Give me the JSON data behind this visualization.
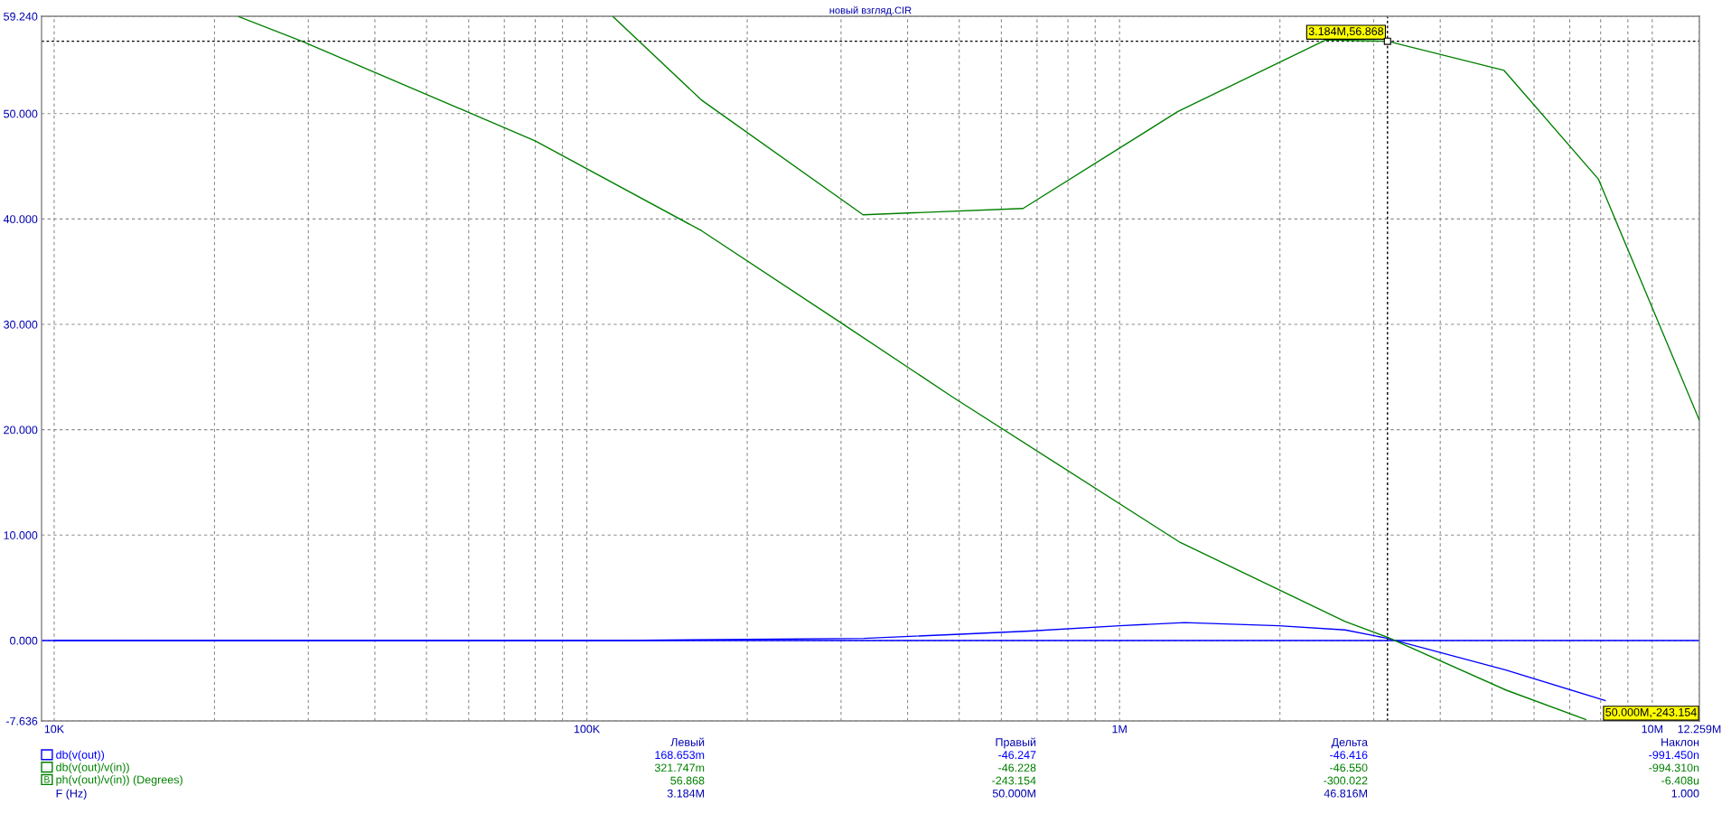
{
  "chart_data": {
    "type": "line",
    "title": "новый взгляд.CIR",
    "log": "x",
    "grid": true,
    "legend": "bottom left",
    "xlim": [
      9470,
      12259000
    ],
    "xticks": [
      {
        "value": 10000,
        "label": "10K"
      },
      {
        "value": 20000,
        "label": null
      },
      {
        "value": 30000,
        "label": null
      },
      {
        "value": 40000,
        "label": null
      },
      {
        "value": 50000,
        "label": null
      },
      {
        "value": 60000,
        "label": null
      },
      {
        "value": 70000,
        "label": null
      },
      {
        "value": 80000,
        "label": null
      },
      {
        "value": 90000,
        "label": null
      },
      {
        "value": 100000,
        "label": "100K"
      },
      {
        "value": 200000,
        "label": null
      },
      {
        "value": 300000,
        "label": null
      },
      {
        "value": 400000,
        "label": null
      },
      {
        "value": 500000,
        "label": null
      },
      {
        "value": 600000,
        "label": null
      },
      {
        "value": 700000,
        "label": null
      },
      {
        "value": 800000,
        "label": null
      },
      {
        "value": 900000,
        "label": null
      },
      {
        "value": 1000000,
        "label": "1M"
      },
      {
        "value": 2000000,
        "label": null
      },
      {
        "value": 3000000,
        "label": null
      },
      {
        "value": 4000000,
        "label": null
      },
      {
        "value": 5000000,
        "label": null
      },
      {
        "value": 6000000,
        "label": null
      },
      {
        "value": 7000000,
        "label": null
      },
      {
        "value": 8000000,
        "label": null
      },
      {
        "value": 9000000,
        "label": null
      },
      {
        "value": 10000000,
        "label": "10M"
      },
      {
        "value": 12259000,
        "label": "12.259M"
      }
    ],
    "ylim": [
      -7.636,
      59.24
    ],
    "yticks": [
      {
        "value": -7.636,
        "label": "-7.636"
      },
      {
        "value": 0,
        "label": "0.000"
      },
      {
        "value": 10,
        "label": "10.000"
      },
      {
        "value": 20,
        "label": "20.000"
      },
      {
        "value": 30,
        "label": "30.000"
      },
      {
        "value": 40,
        "label": "40.000"
      },
      {
        "value": 50,
        "label": "50.000"
      },
      {
        "value": 59.24,
        "label": "59.240"
      }
    ],
    "series": [
      {
        "name": "db(v(out))",
        "color": "#0000ff",
        "x": [
          10000,
          115000,
          200000,
          331000,
          502000,
          678000,
          1000000,
          1325000,
          1990000,
          2650000,
          3184000,
          5310000,
          8160000
        ],
        "values": [
          0.0,
          0.0,
          0.1,
          0.2,
          0.6,
          0.9,
          1.4,
          1.7,
          1.4,
          1.0,
          0.2,
          -2.8,
          -5.7
        ]
      },
      {
        "name": "db(v(out)/v(in))",
        "color": "#008000",
        "x": [
          22200,
          29100,
          60100,
          80100,
          164000,
          301000,
          486000,
          1300000,
          2650000,
          3184000,
          5310000,
          7500000
        ],
        "values": [
          59.2,
          56.9,
          50.1,
          47.4,
          38.9,
          30.1,
          23.1,
          9.3,
          1.8,
          0.3,
          -4.7,
          -7.5
        ]
      },
      {
        "name": "ph(v(out)/v(in)) (Degrees)",
        "color": "#008000",
        "x": [
          112000,
          164000,
          330000,
          659000,
          1287000,
          2440000,
          3184000,
          5270000,
          7920000,
          12259000
        ],
        "values": [
          59.2,
          51.3,
          40.4,
          41.0,
          50.2,
          57.0,
          56.868,
          54.1,
          43.8,
          20.9
        ],
        "value_labels": [
          null,
          null,
          null,
          null,
          null,
          null,
          "3.184M,56.868",
          null,
          null,
          null
        ]
      }
    ],
    "ref_lines": [
      {
        "axis": "y",
        "value": 0,
        "color": "#0000ff",
        "line_style": "solid"
      },
      {
        "axis": "y",
        "value": 56.868,
        "color": "#000000",
        "line_style": "dotted"
      },
      {
        "axis": "x",
        "value": 3184000,
        "color": "#000000",
        "line_style": "dotted"
      }
    ],
    "annotations": [
      "50.000M,-243.154",
      "Левый",
      "Правый",
      "Дельта",
      "Наклон",
      "168.653m",
      "-46.247",
      "-46.416",
      "-991.450n",
      "321.747m",
      "-46.228",
      "-46.550",
      "-994.310n",
      "56.868",
      "-243.154",
      "-300.022",
      "-6.408u",
      "F (Hz)",
      "3.184M",
      "50.000M",
      "46.816M",
      "1.000",
      "B"
    ]
  }
}
